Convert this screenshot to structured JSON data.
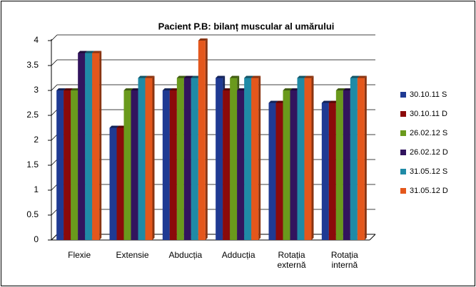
{
  "chart_data": {
    "type": "bar",
    "title": "Pacient P.B: bilanț muscular al umărului",
    "categories": [
      "Flexie",
      "Extensie",
      "Abducția",
      "Adducția",
      "Rotația externă",
      "Rotația internă"
    ],
    "series": [
      {
        "name": "30.10.11 S",
        "color": "#1f3a93",
        "values": [
          3,
          2.25,
          3,
          3.25,
          2.75,
          2.75
        ]
      },
      {
        "name": "30.10.11 D",
        "color": "#8b0a0a",
        "values": [
          3,
          2.25,
          3,
          3,
          2.75,
          2.75
        ]
      },
      {
        "name": "26.02.12 S",
        "color": "#6a9a1c",
        "values": [
          3,
          3,
          3.25,
          3.25,
          3,
          3
        ]
      },
      {
        "name": "26.02.12 D",
        "color": "#32145e",
        "values": [
          3.75,
          3,
          3.25,
          3,
          3,
          3
        ]
      },
      {
        "name": "31.05.12 S",
        "color": "#1f8aa6",
        "values": [
          3.75,
          3.25,
          3.25,
          3.25,
          3.25,
          3.25
        ]
      },
      {
        "name": "31.05.12 D",
        "color": "#e4571c",
        "values": [
          3.75,
          3.25,
          4,
          3.25,
          3.25,
          3.25
        ]
      }
    ],
    "ylim": [
      0,
      4
    ],
    "yticks": [
      0,
      0.5,
      1,
      1.5,
      2,
      2.5,
      3,
      3.5,
      4
    ],
    "grid": true,
    "legend": "right"
  }
}
